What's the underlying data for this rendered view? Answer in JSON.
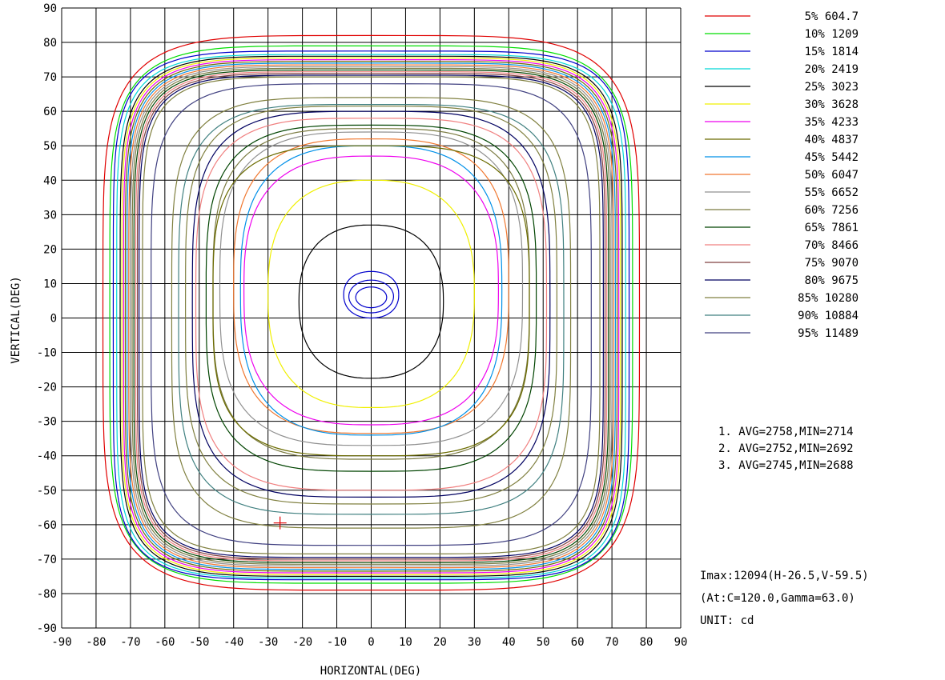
{
  "chart_data": {
    "type": "contour",
    "xlabel": "HORIZONTAL(DEG)",
    "ylabel": "VERTICAL(DEG)",
    "xlim": [
      -90,
      90
    ],
    "ylim": [
      -90,
      90
    ],
    "x_ticks": [
      "-90",
      "-80",
      "-70",
      "-60",
      "-50",
      "-40",
      "-30",
      "-20",
      "-10",
      "0",
      "10",
      "20",
      "30",
      "40",
      "50",
      "60",
      "70",
      "80",
      "90"
    ],
    "y_ticks": [
      "90",
      "80",
      "70",
      "60",
      "50",
      "40",
      "30",
      "20",
      "10",
      "0",
      "-10",
      "-20",
      "-30",
      "-40",
      "-50",
      "-60",
      "-70",
      "-80",
      "-90"
    ],
    "grid": true,
    "legend_position": "top-right",
    "levels": [
      {
        "label": "5% 604.7",
        "value": 604.7,
        "color": "#e00000"
      },
      {
        "label": "10% 1209",
        "value": 1209,
        "color": "#00dd00"
      },
      {
        "label": "15% 1814",
        "value": 1814,
        "color": "#0000cc"
      },
      {
        "label": "20% 2419",
        "value": 2419,
        "color": "#00d8d8"
      },
      {
        "label": "25% 3023",
        "value": 3023,
        "color": "#000000"
      },
      {
        "label": "30% 3628",
        "value": 3628,
        "color": "#f0f000"
      },
      {
        "label": "35% 4233",
        "value": 4233,
        "color": "#ee00ee"
      },
      {
        "label": "40% 4837",
        "value": 4837,
        "color": "#6b6b00"
      },
      {
        "label": "45% 5442",
        "value": 5442,
        "color": "#0090e8"
      },
      {
        "label": "50% 6047",
        "value": 6047,
        "color": "#f07830"
      },
      {
        "label": "55% 6652",
        "value": 6652,
        "color": "#909090"
      },
      {
        "label": "60% 7256",
        "value": 7256,
        "color": "#7a7a40"
      },
      {
        "label": "65% 7861",
        "value": 7861,
        "color": "#004400"
      },
      {
        "label": "70% 8466",
        "value": 8466,
        "color": "#f08080"
      },
      {
        "label": "75% 9070",
        "value": 9070,
        "color": "#804040"
      },
      {
        "label": "80% 9675",
        "value": 9675,
        "color": "#000060"
      },
      {
        "label": "85% 10280",
        "value": 10280,
        "color": "#808040"
      },
      {
        "label": "90% 10884",
        "value": 10884,
        "color": "#408080"
      },
      {
        "label": "95% 11489",
        "value": 11489,
        "color": "#404080"
      }
    ],
    "contours": [
      {
        "level": 0,
        "l": -78,
        "r": 78,
        "t": 82,
        "b": -79,
        "n": 5.0
      },
      {
        "level": 1,
        "l": -76,
        "r": 76,
        "t": 79,
        "b": -77,
        "n": 5.5
      },
      {
        "level": 2,
        "l": -75,
        "r": 75,
        "t": 77.5,
        "b": -76,
        "n": 6.0
      },
      {
        "level": 3,
        "l": -74,
        "r": 74,
        "t": 76.5,
        "b": -75.5,
        "n": 6.0
      },
      {
        "level": 4,
        "l": -73,
        "r": 73,
        "t": 76,
        "b": -75,
        "n": 6.0
      },
      {
        "level": 5,
        "l": -72.5,
        "r": 72.5,
        "t": 75.5,
        "b": -74.5,
        "n": 6.0
      },
      {
        "level": 6,
        "l": -72,
        "r": 72,
        "t": 75,
        "b": -74,
        "n": 6.0
      },
      {
        "level": 7,
        "l": -71.5,
        "r": 71.5,
        "t": 74.5,
        "b": -73.5,
        "n": 6.0
      },
      {
        "level": 8,
        "l": -71,
        "r": 71,
        "t": 74,
        "b": -73,
        "n": 6.0
      },
      {
        "level": 9,
        "l": -70.5,
        "r": 70.5,
        "t": 73.5,
        "b": -72.5,
        "n": 6.0
      },
      {
        "level": 10,
        "l": -70,
        "r": 70,
        "t": 73,
        "b": -72,
        "n": 6.0
      },
      {
        "level": 11,
        "l": -69.5,
        "r": 69.5,
        "t": 72.5,
        "b": -71.5,
        "n": 6.0
      },
      {
        "level": 12,
        "l": -69,
        "r": 69,
        "t": 72,
        "b": -71,
        "n": 6.0
      },
      {
        "level": 13,
        "l": -68.5,
        "r": 68.5,
        "t": 71.5,
        "b": -70.5,
        "n": 6.0
      },
      {
        "level": 14,
        "l": -68,
        "r": 68,
        "t": 71,
        "b": -70,
        "n": 6.0
      },
      {
        "level": 15,
        "l": -67.5,
        "r": 67.5,
        "t": 70.5,
        "b": -69.5,
        "n": 6.0
      },
      {
        "level": 16,
        "l": -66.5,
        "r": 66.5,
        "t": 70,
        "b": -68.5,
        "n": 6.0
      },
      {
        "level": 18,
        "l": -64,
        "r": 64,
        "t": 68,
        "b": -66,
        "n": 5.0
      },
      {
        "level": 16,
        "l": -58,
        "r": 58,
        "t": 64,
        "b": -61,
        "n": 4.5
      },
      {
        "level": 17,
        "l": -56,
        "r": 56,
        "t": 62,
        "b": -57,
        "n": 4.2
      },
      {
        "level": 16,
        "l": -54,
        "r": 54,
        "t": 61.5,
        "b": -54,
        "n": 4.0
      },
      {
        "level": 15,
        "l": -52,
        "r": 52,
        "t": 60,
        "b": -52,
        "n": 3.8
      },
      {
        "level": 13,
        "l": -51,
        "r": 51,
        "t": 58,
        "b": -50,
        "n": 3.7
      },
      {
        "level": 12,
        "l": -48,
        "r": 48,
        "t": 56,
        "b": -44.5,
        "n": 3.5
      },
      {
        "level": 11,
        "l": -46,
        "r": 46,
        "t": 55,
        "b": -41,
        "n": 3.4
      },
      {
        "level": 10,
        "l": -44,
        "r": 44,
        "t": 54,
        "b": -37,
        "n": 3.2
      },
      {
        "level": 9,
        "l": -40,
        "r": 40,
        "t": 52,
        "b": -33.5,
        "n": 3.0
      },
      {
        "level": 8,
        "l": -38,
        "r": 38,
        "t": 50,
        "b": -34,
        "n": 2.9
      },
      {
        "level": 7,
        "l": -46,
        "r": 46,
        "t": 50,
        "b": -40,
        "n": 3.5
      },
      {
        "level": 6,
        "l": -37,
        "r": 37,
        "t": 47,
        "b": -31,
        "n": 2.8
      },
      {
        "level": 5,
        "l": -30,
        "r": 30,
        "t": 40,
        "b": -26,
        "n": 2.6
      },
      {
        "level": 4,
        "l": -21,
        "r": 21,
        "t": 27,
        "b": -17.5,
        "n": 2.4
      },
      {
        "level": 2,
        "l": -8,
        "r": 8,
        "t": 13.5,
        "b": 0,
        "n": 2.2
      },
      {
        "level": 2,
        "l": -6.5,
        "r": 6.5,
        "t": 11,
        "b": 1.5,
        "n": 2.0
      },
      {
        "level": 2,
        "l": -4.5,
        "r": 4.5,
        "t": 9,
        "b": 3,
        "n": 2.0
      }
    ],
    "notes": [
      "1. AVG=2758,MIN=2714",
      "2. AVG=2752,MIN=2692",
      "3. AVG=2745,MIN=2688"
    ],
    "imax_lines": [
      "Imax:12094(H-26.5,V-59.5)",
      " (At:C=120.0,Gamma=63.0)",
      "UNIT: cd"
    ],
    "imax_point": {
      "h": -26.5,
      "v": -59.5,
      "color": "#e00000"
    }
  }
}
